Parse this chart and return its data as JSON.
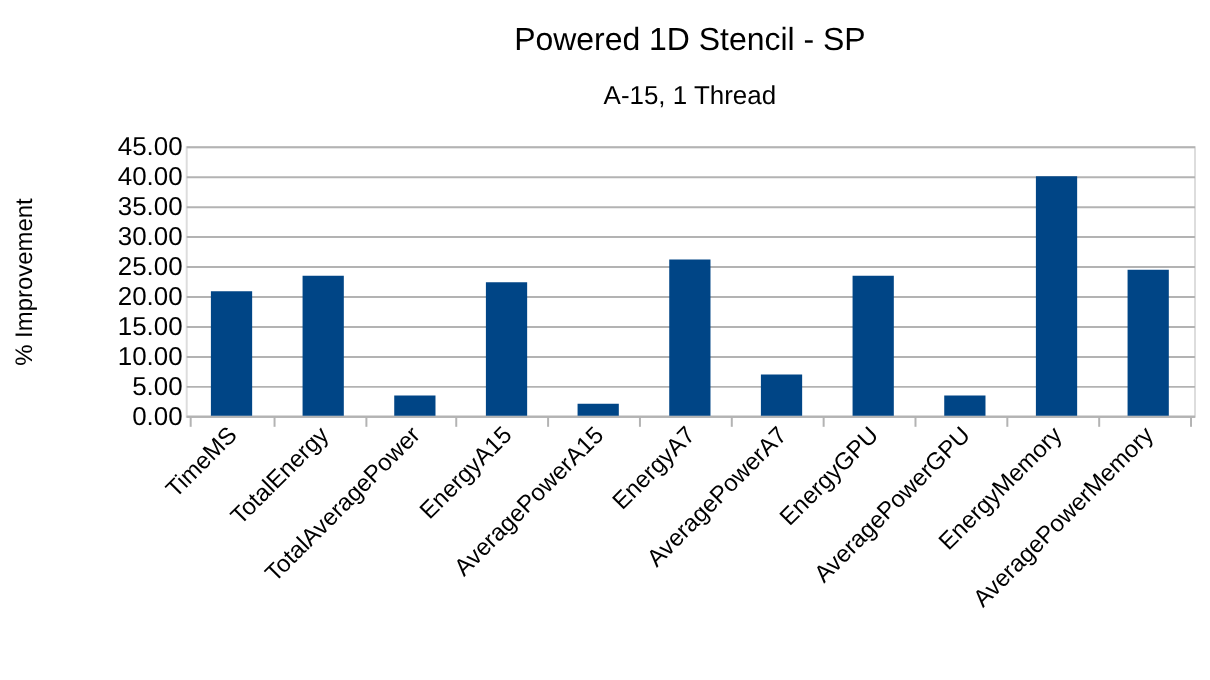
{
  "chart_data": {
    "type": "bar",
    "title": "Powered 1D Stencil - SP",
    "subtitle": "A-15, 1 Thread",
    "ylabel": "% Improvement",
    "categories": [
      "TimeMS",
      "TotalEnergy",
      "TotalAveragePower",
      "EnergyA15",
      "AveragePowerA15",
      "EnergyA7",
      "AveragePowerA7",
      "EnergyGPU",
      "AveragePowerGPU",
      "EnergyMemory",
      "AveragePowerMemory"
    ],
    "values": [
      20.8,
      23.4,
      3.4,
      22.3,
      2.0,
      26.1,
      6.9,
      23.4,
      3.4,
      40.0,
      24.4
    ],
    "color": "#004586",
    "ylim": [
      0,
      45
    ],
    "yticks": [
      {
        "value": 0,
        "label": "0.00"
      },
      {
        "value": 5,
        "label": "5.00"
      },
      {
        "value": 10,
        "label": "10.00"
      },
      {
        "value": 15,
        "label": "15.00"
      },
      {
        "value": 20,
        "label": "20.00"
      },
      {
        "value": 25,
        "label": "25.00"
      },
      {
        "value": 30,
        "label": "30.00"
      },
      {
        "value": 35,
        "label": "35.00"
      },
      {
        "value": 40,
        "label": "40.00"
      },
      {
        "value": 45,
        "label": "45.00"
      }
    ],
    "grid": "y"
  }
}
